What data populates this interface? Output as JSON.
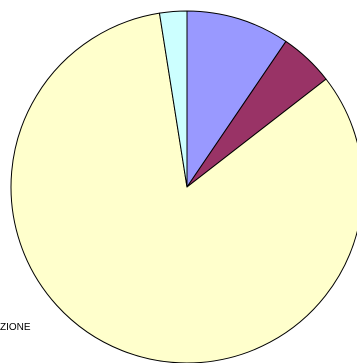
{
  "chart_data": {
    "type": "pie",
    "title": "",
    "start_angle_deg": 0,
    "direction": "clockwise",
    "slices": [
      {
        "label": "",
        "value": 9.5,
        "color": "#9999ff"
      },
      {
        "label": "",
        "value": 5.0,
        "color": "#993366"
      },
      {
        "label": "",
        "value": 83.0,
        "color": "#ffffcc"
      },
      {
        "label": "",
        "value": 2.5,
        "color": "#ccffff"
      }
    ],
    "visible_label_fragment": "ZIONE",
    "legend": "none"
  }
}
